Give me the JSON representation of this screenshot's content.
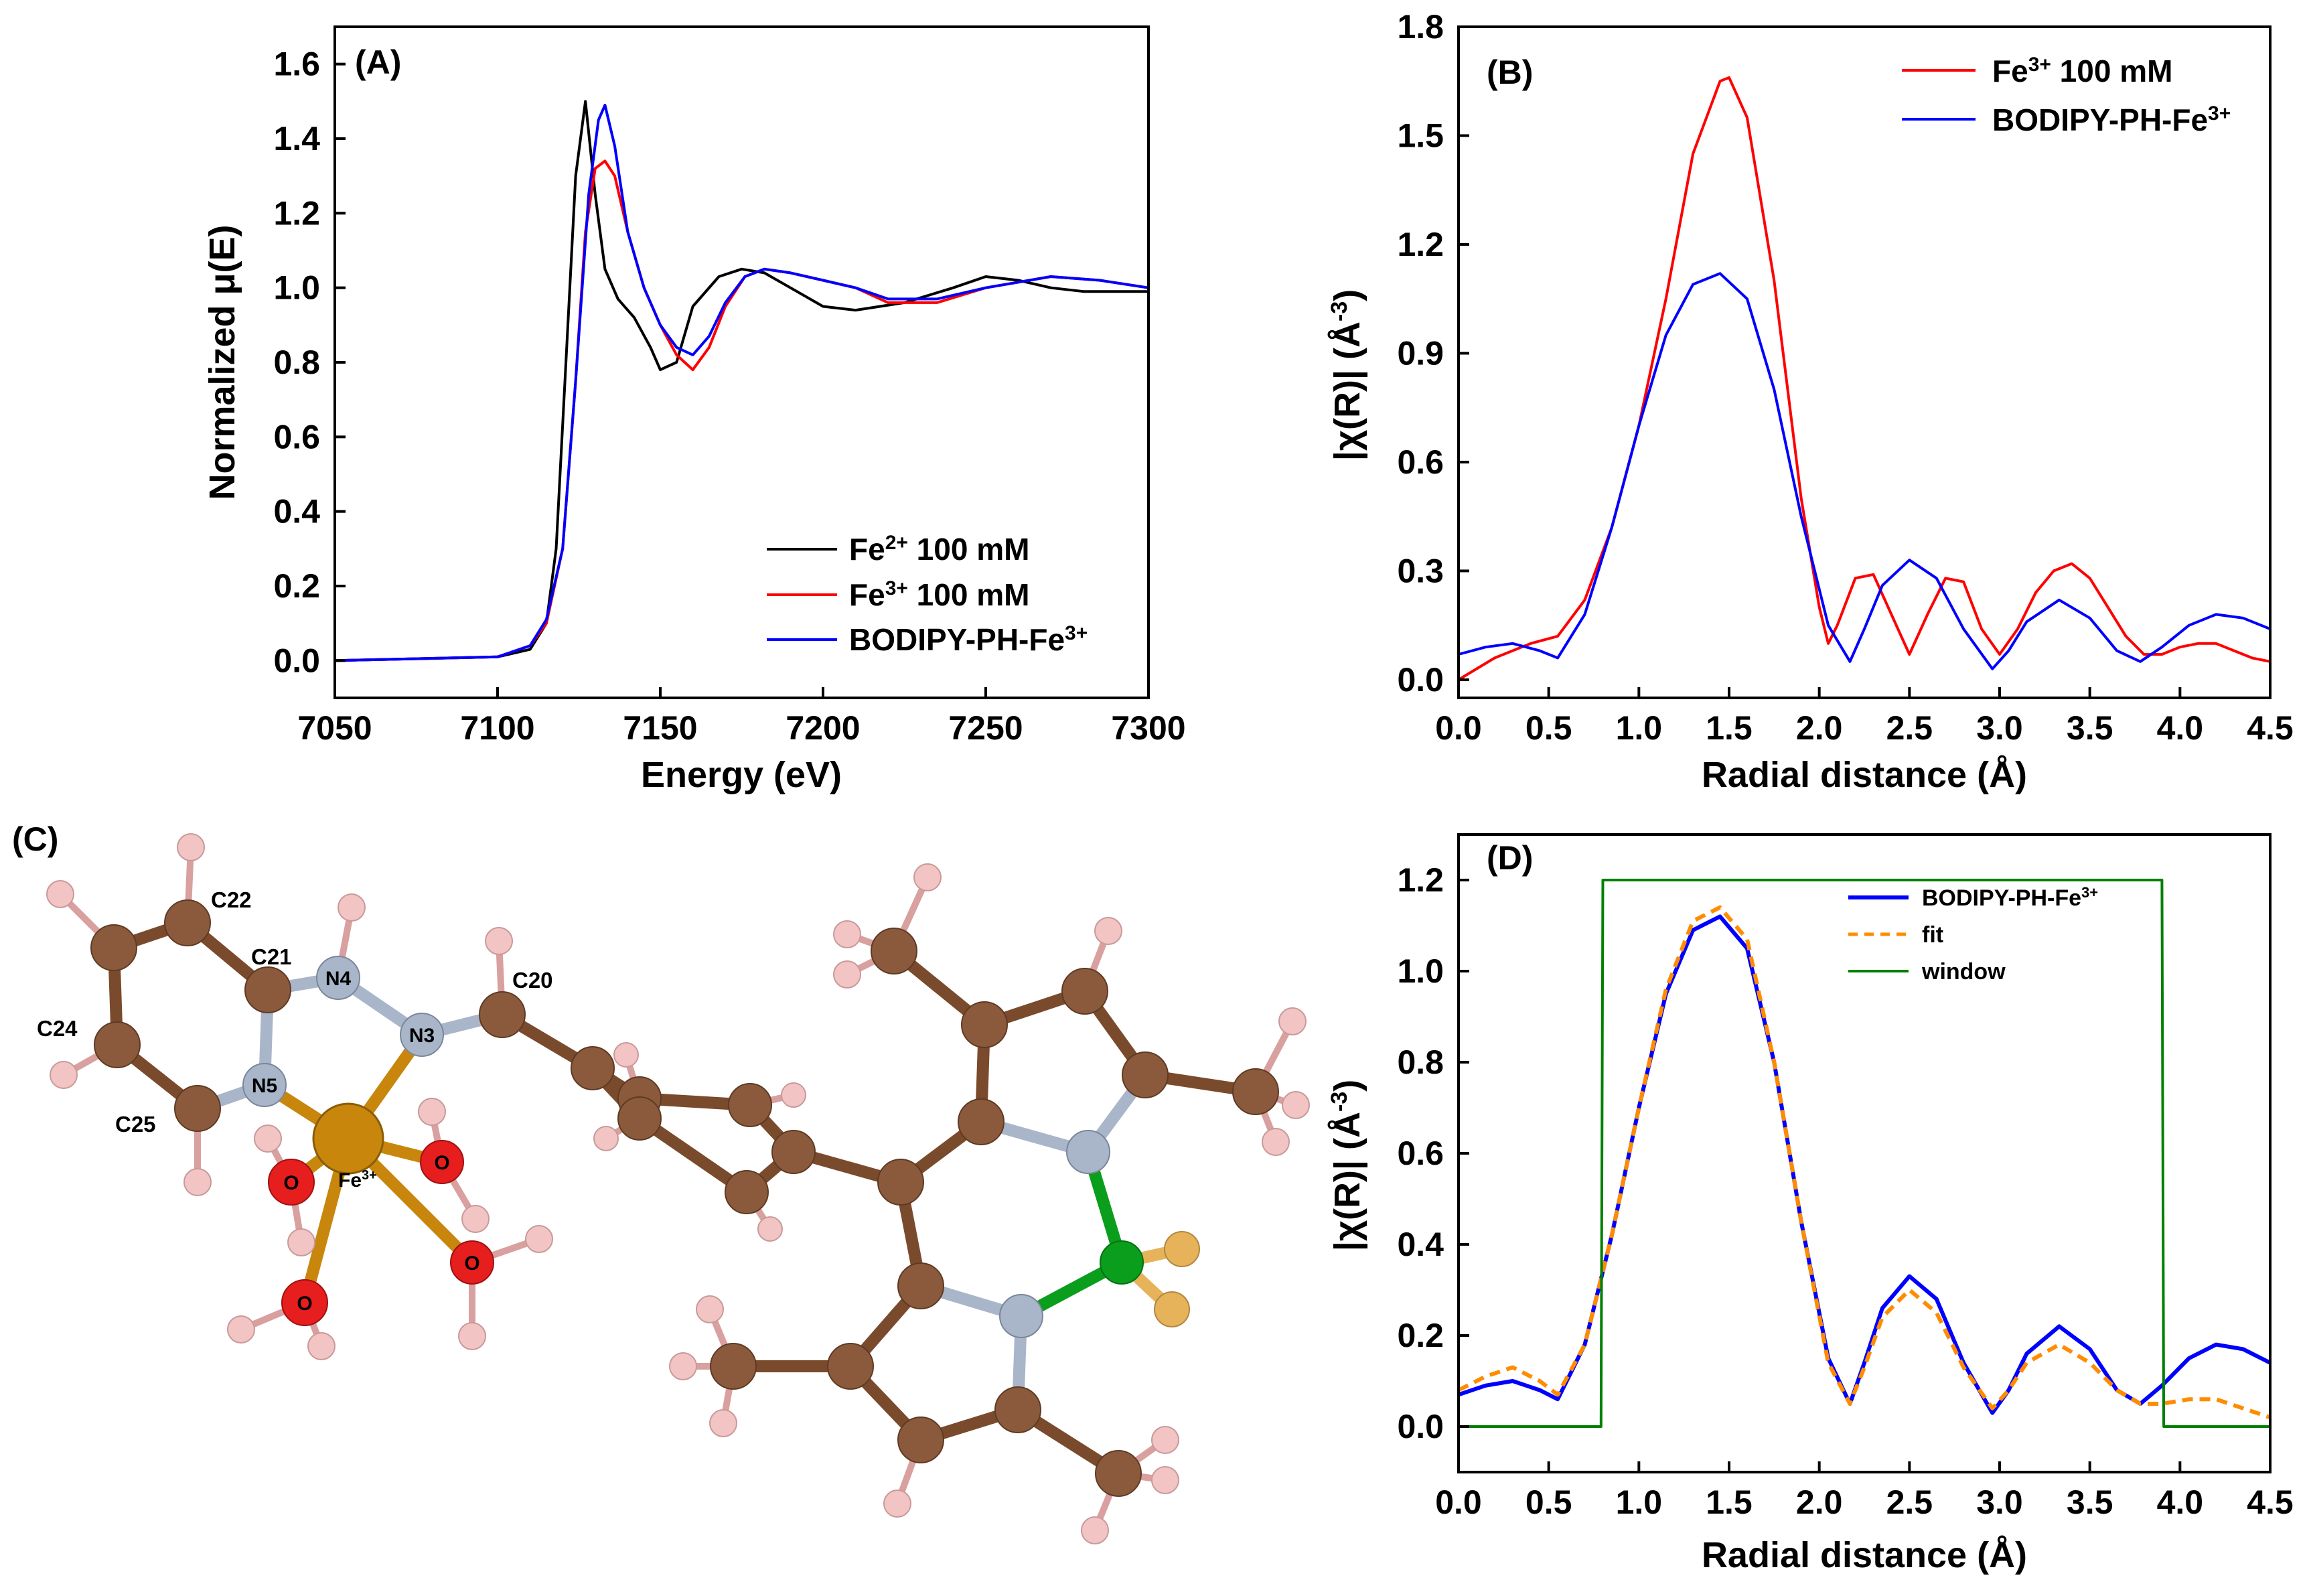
{
  "chart_data": [
    {
      "panel": "(A)",
      "type": "line",
      "xlabel": "Energy (eV)",
      "ylabel": "Normalized μ(E)",
      "xlim": [
        7050,
        7300
      ],
      "ylim": [
        -0.1,
        1.7
      ],
      "xticks": [
        7050,
        7100,
        7150,
        7200,
        7250,
        7300
      ],
      "yticks": [
        0.0,
        0.2,
        0.4,
        0.6,
        0.8,
        1.0,
        1.2,
        1.4,
        1.6
      ],
      "legend_position": "bottom-right",
      "series": [
        {
          "name_base": "Fe",
          "name_sup": "2+",
          "name_rest": " 100 mM",
          "color": "#000000",
          "x": [
            7050,
            7100,
            7110,
            7115,
            7118,
            7121,
            7124,
            7127,
            7130,
            7133,
            7137,
            7142,
            7147,
            7150,
            7155,
            7160,
            7168,
            7175,
            7182,
            7190,
            7200,
            7210,
            7225,
            7240,
            7250,
            7260,
            7270,
            7280,
            7290,
            7300
          ],
          "y": [
            0.0,
            0.01,
            0.03,
            0.1,
            0.3,
            0.8,
            1.3,
            1.5,
            1.25,
            1.05,
            0.97,
            0.92,
            0.84,
            0.78,
            0.8,
            0.95,
            1.03,
            1.05,
            1.04,
            1.0,
            0.95,
            0.94,
            0.96,
            1.0,
            1.03,
            1.02,
            1.0,
            0.99,
            0.99,
            0.99
          ]
        },
        {
          "name_base": "Fe",
          "name_sup": "3+",
          "name_rest": " 100 mM",
          "color": "#ff0000",
          "x": [
            7050,
            7100,
            7110,
            7115,
            7120,
            7124,
            7127,
            7130,
            7133,
            7136,
            7140,
            7145,
            7150,
            7155,
            7160,
            7165,
            7170,
            7176,
            7182,
            7190,
            7200,
            7210,
            7220,
            7235,
            7250,
            7270,
            7285,
            7300
          ],
          "y": [
            0.0,
            0.01,
            0.04,
            0.1,
            0.3,
            0.75,
            1.15,
            1.32,
            1.34,
            1.3,
            1.15,
            1.0,
            0.9,
            0.82,
            0.78,
            0.84,
            0.95,
            1.03,
            1.05,
            1.04,
            1.02,
            1.0,
            0.96,
            0.96,
            1.0,
            1.03,
            1.02,
            1.0
          ]
        },
        {
          "name_base": "BODIPY-PH-Fe",
          "name_sup": "3+",
          "name_rest": "",
          "color": "#0000ff",
          "x": [
            7050,
            7100,
            7110,
            7115,
            7120,
            7124,
            7128,
            7131,
            7133,
            7136,
            7140,
            7145,
            7150,
            7155,
            7160,
            7165,
            7170,
            7176,
            7182,
            7190,
            7200,
            7210,
            7220,
            7235,
            7250,
            7270,
            7285,
            7300
          ],
          "y": [
            0.0,
            0.01,
            0.04,
            0.11,
            0.3,
            0.75,
            1.25,
            1.45,
            1.49,
            1.38,
            1.15,
            1.0,
            0.9,
            0.84,
            0.82,
            0.87,
            0.96,
            1.03,
            1.05,
            1.04,
            1.02,
            1.0,
            0.97,
            0.97,
            1.0,
            1.03,
            1.02,
            1.0
          ]
        }
      ]
    },
    {
      "panel": "(B)",
      "type": "line",
      "xlabel": "Radial distance (Å)",
      "ylabel_base": "|χ(R)| (Å",
      "ylabel_sup": "-3",
      "ylabel_end": ")",
      "xlim": [
        0.0,
        4.5
      ],
      "ylim": [
        -0.05,
        1.8
      ],
      "xticks": [
        0.0,
        0.5,
        1.0,
        1.5,
        2.0,
        2.5,
        3.0,
        3.5,
        4.0,
        4.5
      ],
      "yticks": [
        0.0,
        0.3,
        0.6,
        0.9,
        1.2,
        1.5,
        1.8
      ],
      "legend_position": "top-right",
      "series": [
        {
          "name_base": "Fe",
          "name_sup": "3+",
          "name_rest": " 100 mM",
          "color": "#ff0000",
          "x": [
            0.0,
            0.2,
            0.4,
            0.55,
            0.7,
            0.85,
            1.0,
            1.15,
            1.3,
            1.45,
            1.5,
            1.6,
            1.75,
            1.9,
            2.0,
            2.05,
            2.1,
            2.2,
            2.3,
            2.4,
            2.5,
            2.6,
            2.7,
            2.8,
            2.9,
            3.0,
            3.1,
            3.2,
            3.3,
            3.4,
            3.5,
            3.6,
            3.7,
            3.8,
            3.9,
            4.0,
            4.1,
            4.2,
            4.3,
            4.4,
            4.5
          ],
          "y": [
            0.0,
            0.06,
            0.1,
            0.12,
            0.22,
            0.42,
            0.7,
            1.05,
            1.45,
            1.65,
            1.66,
            1.55,
            1.1,
            0.5,
            0.2,
            0.1,
            0.15,
            0.28,
            0.29,
            0.18,
            0.07,
            0.18,
            0.28,
            0.27,
            0.14,
            0.07,
            0.14,
            0.24,
            0.3,
            0.32,
            0.28,
            0.2,
            0.12,
            0.07,
            0.07,
            0.09,
            0.1,
            0.1,
            0.08,
            0.06,
            0.05
          ]
        },
        {
          "name_base": "BODIPY-PH-Fe",
          "name_sup": "3+",
          "name_rest": "",
          "color": "#0000ff",
          "x": [
            0.0,
            0.15,
            0.3,
            0.45,
            0.55,
            0.7,
            0.85,
            1.0,
            1.15,
            1.3,
            1.45,
            1.6,
            1.75,
            1.9,
            2.05,
            2.17,
            2.25,
            2.35,
            2.5,
            2.65,
            2.8,
            2.96,
            3.05,
            3.15,
            3.33,
            3.5,
            3.65,
            3.78,
            3.9,
            4.05,
            4.2,
            4.35,
            4.5
          ],
          "y": [
            0.07,
            0.09,
            0.1,
            0.08,
            0.06,
            0.18,
            0.42,
            0.7,
            0.95,
            1.09,
            1.12,
            1.05,
            0.8,
            0.45,
            0.15,
            0.05,
            0.14,
            0.26,
            0.33,
            0.28,
            0.14,
            0.03,
            0.08,
            0.16,
            0.22,
            0.17,
            0.08,
            0.05,
            0.09,
            0.15,
            0.18,
            0.17,
            0.14
          ]
        }
      ]
    },
    {
      "panel": "(D)",
      "type": "line",
      "xlabel": "Radial distance (Å)",
      "ylabel_base": "|χ(R)| (Å",
      "ylabel_sup": "-3",
      "ylabel_end": ")",
      "xlim": [
        0.0,
        4.5
      ],
      "ylim": [
        -0.1,
        1.3
      ],
      "xticks": [
        0.0,
        0.5,
        1.0,
        1.5,
        2.0,
        2.5,
        3.0,
        3.5,
        4.0,
        4.5
      ],
      "yticks": [
        0.0,
        0.2,
        0.4,
        0.6,
        0.8,
        1.0,
        1.2
      ],
      "legend_position": "top-right",
      "series": [
        {
          "name_base": "BODIPY-PH-Fe",
          "name_sup": "3+",
          "name_rest": "",
          "color": "#0000ff",
          "style": "solid",
          "x": [
            0.0,
            0.15,
            0.3,
            0.45,
            0.55,
            0.7,
            0.85,
            1.0,
            1.15,
            1.3,
            1.45,
            1.6,
            1.75,
            1.9,
            2.05,
            2.17,
            2.25,
            2.35,
            2.5,
            2.65,
            2.8,
            2.96,
            3.05,
            3.15,
            3.33,
            3.5,
            3.65,
            3.78,
            3.9,
            4.05,
            4.2,
            4.35,
            4.5
          ],
          "y": [
            0.07,
            0.09,
            0.1,
            0.08,
            0.06,
            0.18,
            0.42,
            0.7,
            0.95,
            1.09,
            1.12,
            1.05,
            0.8,
            0.45,
            0.15,
            0.05,
            0.14,
            0.26,
            0.33,
            0.28,
            0.14,
            0.03,
            0.08,
            0.16,
            0.22,
            0.17,
            0.08,
            0.05,
            0.09,
            0.15,
            0.18,
            0.17,
            0.14
          ]
        },
        {
          "name": "fit",
          "color": "#ff8c00",
          "style": "dashed",
          "x": [
            0.0,
            0.15,
            0.3,
            0.45,
            0.55,
            0.7,
            0.85,
            1.0,
            1.15,
            1.3,
            1.45,
            1.6,
            1.75,
            1.9,
            2.05,
            2.17,
            2.25,
            2.35,
            2.5,
            2.65,
            2.8,
            2.96,
            3.05,
            3.15,
            3.33,
            3.5,
            3.65,
            3.78,
            3.9,
            4.05,
            4.2,
            4.35,
            4.5
          ],
          "y": [
            0.08,
            0.11,
            0.13,
            0.1,
            0.07,
            0.18,
            0.42,
            0.7,
            0.96,
            1.11,
            1.14,
            1.07,
            0.8,
            0.45,
            0.14,
            0.05,
            0.13,
            0.24,
            0.3,
            0.25,
            0.13,
            0.04,
            0.08,
            0.14,
            0.18,
            0.14,
            0.08,
            0.05,
            0.05,
            0.06,
            0.06,
            0.04,
            0.02
          ]
        },
        {
          "name": "window",
          "color": "#008000",
          "style": "solid",
          "x": [
            0.0,
            0.79,
            0.8,
            3.9,
            3.91,
            4.5
          ],
          "y": [
            0.0,
            0.0,
            1.2,
            1.2,
            0.0,
            0.0
          ]
        }
      ]
    }
  ],
  "panelC": {
    "label": "(C)",
    "type": "molecular-structure",
    "atom_labels": [
      "C22",
      "C21",
      "N4",
      "C20",
      "C24",
      "N3",
      "N5",
      "C25"
    ],
    "metal_base": "Fe",
    "metal_sup": "3+",
    "oxygen_label": "O",
    "colors": {
      "carbon": "#8b5a3c",
      "nitrogen": "#a9b6c9",
      "iron": "#c8860c",
      "oxygen": "#e61e1e",
      "hydrogen": "#f2c4c4",
      "boron": "#0a9e1c",
      "fluorine": "#e6b35a",
      "bond_carbon": "#7a4a2c"
    }
  }
}
